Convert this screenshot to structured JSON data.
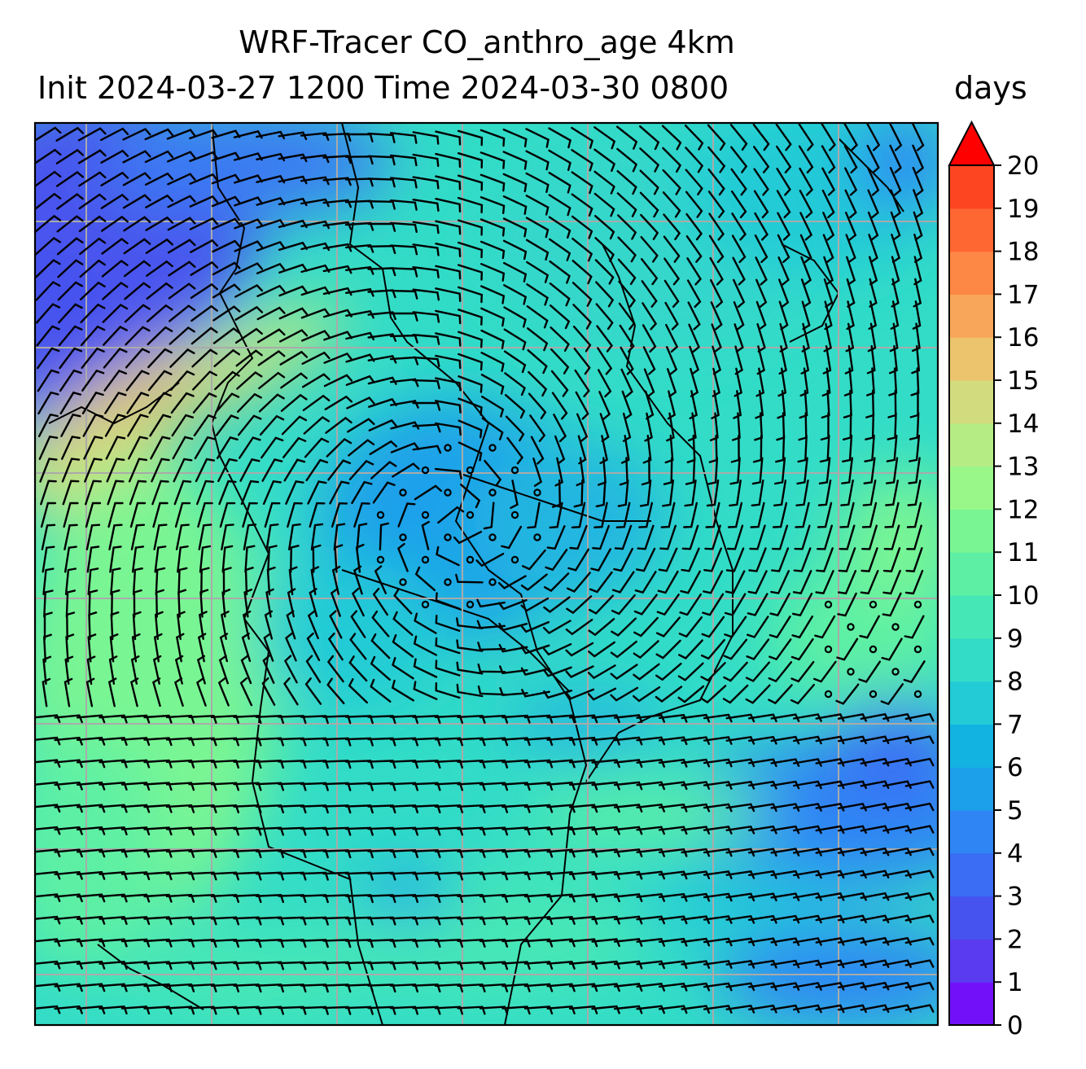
{
  "title": {
    "line1": "WRF-Tracer CO_anthro_age 4km",
    "line2": "Init 2024-03-27 1200 Time 2024-03-30 0800"
  },
  "colorbar": {
    "unit": "days",
    "min": 0,
    "max": 20,
    "extend": "max",
    "ticks": [
      "0",
      "1",
      "2",
      "3",
      "4",
      "5",
      "6",
      "7",
      "8",
      "9",
      "10",
      "11",
      "12",
      "13",
      "14",
      "15",
      "16",
      "17",
      "18",
      "19",
      "20"
    ],
    "colors": [
      "#7211f9",
      "#5a3bf0",
      "#4753ee",
      "#3a6cf4",
      "#2f85f4",
      "#1da0ea",
      "#12b3e0",
      "#23cbd6",
      "#32dcc7",
      "#46e7b6",
      "#5df0a4",
      "#7af593",
      "#99f78a",
      "#b5ec84",
      "#d2dc7e",
      "#ecc46e",
      "#f8a659",
      "#fd8744",
      "#fe6632",
      "#fd4522",
      "#f91e0f"
    ],
    "extend_color": "#ff0000"
  },
  "map": {
    "grid": "on",
    "gridline_color": "#aaaaaa",
    "field": "CO_anthro_age",
    "overlay": "wind barbs with calm circles",
    "coastlines": "on"
  }
}
